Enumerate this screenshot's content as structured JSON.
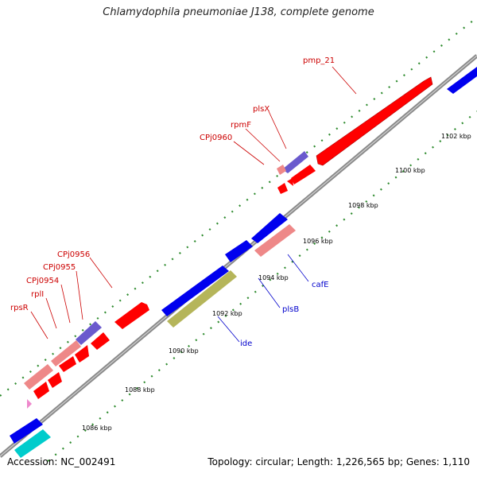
{
  "title": "Chlamydophila pneumoniae J138, complete genome",
  "footer": {
    "accession": "Accession: NC_002491",
    "summary": "Topology: circular; Length: 1,226,565 bp; Genes: 1,110"
  },
  "colors": {
    "backbone": "#808080",
    "tick": "#2e8b2e",
    "forward_label": "#cc0000",
    "reverse_label": "#0000cc",
    "gene_red": "#ff0000",
    "gene_pink": "#ee8888",
    "gene_blue": "#0000ee",
    "gene_purple": "#6a5acd",
    "gene_olive": "#b5b55a",
    "gene_cyan": "#00cccc"
  },
  "ticks": [
    {
      "label": "1086 kbp"
    },
    {
      "label": "1088 kbp"
    },
    {
      "label": "1090 kbp"
    },
    {
      "label": "1092 kbp"
    },
    {
      "label": "1094 kbp"
    },
    {
      "label": "1096 kbp"
    },
    {
      "label": "1098 kbp"
    },
    {
      "label": "1100 kbp"
    },
    {
      "label": "1102 kbp"
    }
  ],
  "forward_labels": [
    "pmp_21",
    "plsX",
    "rpmF",
    "CPj0960",
    "CPj0956",
    "CPj0955",
    "CPj0954",
    "rplI",
    "rpsR"
  ],
  "reverse_labels": [
    "cafE",
    "plsB",
    "ide"
  ]
}
